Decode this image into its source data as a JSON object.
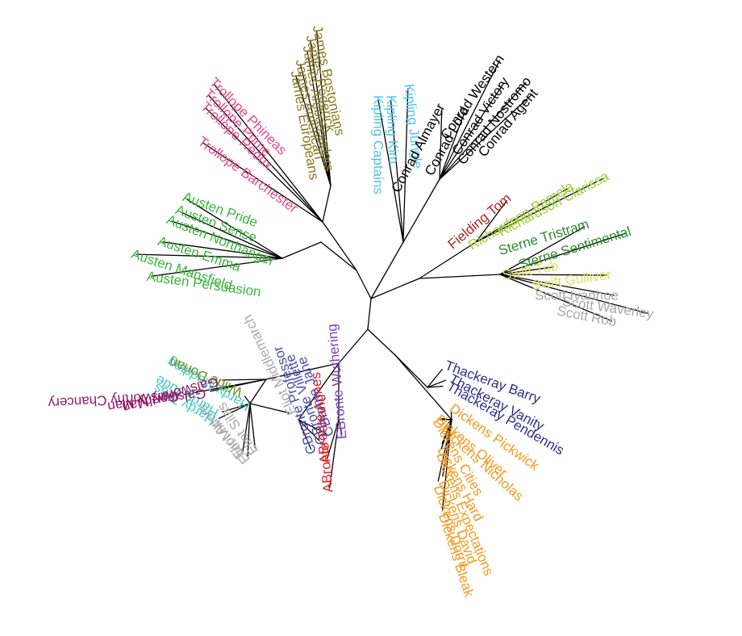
{
  "leaves": [
    {
      "label": "James Bostonians",
      "color": "#8b7a1f"
    },
    {
      "label": "James Roderick",
      "color": "#8b7a1f"
    },
    {
      "label": "James Ambassadors",
      "color": "#8b7a1f"
    },
    {
      "label": "James American",
      "color": "#8b7a1f"
    },
    {
      "label": "James Europeans",
      "color": "#8b7a1f"
    },
    {
      "label": "Trollope Phineas",
      "color": "#e8478a"
    },
    {
      "label": "Trollope Prime",
      "color": "#e8478a"
    },
    {
      "label": "Trollope Redux",
      "color": "#e8478a"
    },
    {
      "label": "Trollope Barchester",
      "color": "#e8478a"
    },
    {
      "label": "Austen Pride",
      "color": "#3bb53b"
    },
    {
      "label": "Austen Sense",
      "color": "#3bb53b"
    },
    {
      "label": "Austen Northanger",
      "color": "#3bb53b"
    },
    {
      "label": "Austen Emma",
      "color": "#3bb53b"
    },
    {
      "label": "Austen Mansfield",
      "color": "#3bb53b"
    },
    {
      "label": "Austen Persuasion",
      "color": "#3bb53b"
    },
    {
      "label": "Kipling Captains",
      "color": "#4fc3f0"
    },
    {
      "label": "Kipling Kim",
      "color": "#4fc3f0"
    },
    {
      "label": "Kipling Jungle",
      "color": "#4fc3f0"
    },
    {
      "label": "Conrad Almayer",
      "color": "#000000"
    },
    {
      "label": "Conrad Lord",
      "color": "#000000"
    },
    {
      "label": "Conrad Western",
      "color": "#000000"
    },
    {
      "label": "Conrad Victory",
      "color": "#000000"
    },
    {
      "label": "Conrad Nostromo",
      "color": "#000000"
    },
    {
      "label": "Conrad Agent",
      "color": "#000000"
    },
    {
      "label": "Fielding Tom",
      "color": "#b22222"
    },
    {
      "label": "Richardson Pamela",
      "color": "#9acd32"
    },
    {
      "label": "Richardson Clarissa",
      "color": "#9acd32"
    },
    {
      "label": "Sterne Tristram",
      "color": "#2e8b2e"
    },
    {
      "label": "Sterne Sentimental",
      "color": "#2e8b2e"
    },
    {
      "label": "Swift Tub",
      "color": "#e0e060"
    },
    {
      "label": "Swift Gulliver",
      "color": "#e0e060"
    },
    {
      "label": "Scott Ivanhoe",
      "color": "#a9a9a9"
    },
    {
      "label": "Scott Waverley",
      "color": "#a9a9a9"
    },
    {
      "label": "Scott Rob",
      "color": "#a9a9a9"
    },
    {
      "label": "Thackeray Barry",
      "color": "#2e2e8b"
    },
    {
      "label": "Thackeray Vanity",
      "color": "#2e2e8b"
    },
    {
      "label": "Thackeray Pendennis",
      "color": "#2e2e8b"
    },
    {
      "label": "Dickens Pickwick",
      "color": "#f59a1e"
    },
    {
      "label": "Dickens Oliver",
      "color": "#f59a1e"
    },
    {
      "label": "Dickens Nicholas",
      "color": "#f59a1e"
    },
    {
      "label": "Dickens Cities",
      "color": "#f59a1e"
    },
    {
      "label": "Dickens Hard",
      "color": "#f59a1e"
    },
    {
      "label": "Dickens Expectations",
      "color": "#f59a1e"
    },
    {
      "label": "Dickens David",
      "color": "#f59a1e"
    },
    {
      "label": "Dickens Dorrit",
      "color": "#f59a1e"
    },
    {
      "label": "Dickens Bleak",
      "color": "#f59a1e"
    },
    {
      "label": "EBronte Wuthering",
      "color": "#7b3fbf"
    },
    {
      "label": "ABronte Agnes",
      "color": "#e82020"
    },
    {
      "label": "ABronte Tenant",
      "color": "#e82020"
    },
    {
      "label": "CBronte Jane",
      "color": "#4a4ab0"
    },
    {
      "label": "CBronte Villette",
      "color": "#4a4ab0"
    },
    {
      "label": "CBronte Professor",
      "color": "#4a4ab0"
    },
    {
      "label": "Eliot Adam",
      "color": "#a9a9a9"
    },
    {
      "label": "Eliot Mill",
      "color": "#a9a9a9"
    },
    {
      "label": "Eliot Silas",
      "color": "#a9a9a9"
    },
    {
      "label": "Eliot Middlemarch",
      "color": "#a9a9a9"
    },
    {
      "label": "Hardy Jude",
      "color": "#48c8c8"
    },
    {
      "label": "Hardy Tess",
      "color": "#48c8c8"
    },
    {
      "label": "Hardy Madding",
      "color": "#48c8c8"
    },
    {
      "label": "Wilde Dorian",
      "color": "#6b8e23"
    },
    {
      "label": "Galsworthy Chancery",
      "color": "#8b1a6b"
    },
    {
      "label": "Galsworthy Man",
      "color": "#8b1a6b"
    },
    {
      "label": "Galsworthy Man",
      "color": "#8b1a6b"
    }
  ]
}
